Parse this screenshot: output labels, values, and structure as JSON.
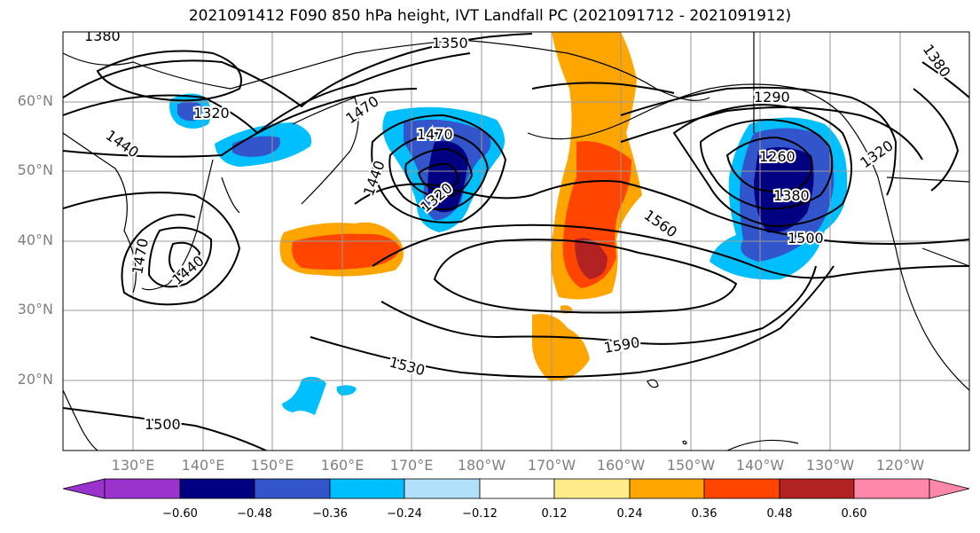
{
  "title": "2021091412 F090 850 hPa height, IVT Landfall PC (2021091712 - 2021091912)",
  "lat_labels": [
    "60°N",
    "50°N",
    "40°N",
    "30°N",
    "20°N"
  ],
  "lon_labels": [
    "130°E",
    "140°E",
    "150°E",
    "160°E",
    "170°E",
    "180°W",
    "170°W",
    "160°W",
    "150°W",
    "140°W",
    "130°W",
    "120°W"
  ],
  "contour_labels": [
    "1380",
    "1350",
    "1320",
    "1470",
    "1440",
    "1470",
    "1440",
    "1320",
    "1290",
    "1260",
    "1380",
    "1320",
    "1380",
    "1560",
    "1500",
    "1470",
    "1440",
    "1530",
    "1590",
    "1500"
  ],
  "colorbar": {
    "ticks": [
      "−0.60",
      "−0.48",
      "−0.36",
      "−0.24",
      "−0.12",
      "0.12",
      "0.24",
      "0.36",
      "0.48",
      "0.60"
    ],
    "colors": [
      "#9933cc",
      "#000080",
      "#3355cc",
      "#00bfff",
      "#b0e0fa",
      "#ffffff",
      "#ffec8b",
      "#ffa500",
      "#ff4500",
      "#b22222",
      "#ff88aa"
    ]
  }
}
